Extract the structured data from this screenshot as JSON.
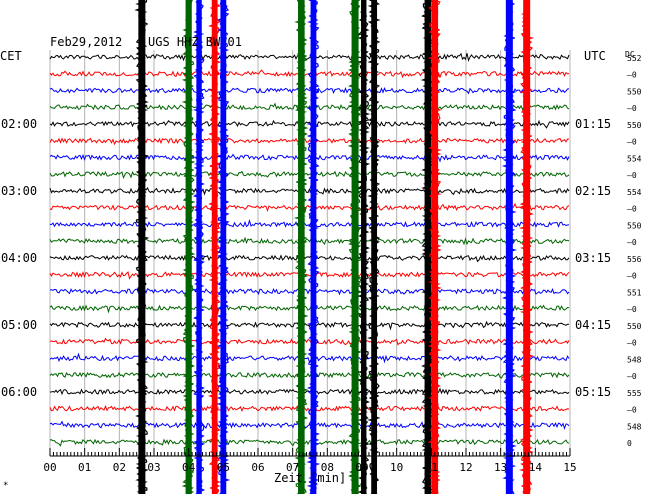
{
  "header": {
    "date": "Feb29,2012",
    "station": "UGS HHZ BW 01"
  },
  "labels": {
    "left_tz": "CET",
    "right_tz": "UTC",
    "dc": "DC",
    "xlabel": "Zeit [min]",
    "corner_mark": "*"
  },
  "colors": {
    "background": "#ffffff",
    "grid": "#b4b4b4",
    "text": "#000000",
    "trace_cycle": [
      "#000000",
      "#ff0000",
      "#0000ff",
      "#006400"
    ]
  },
  "chart_data": {
    "type": "line",
    "title": "Feb29,2012 UGS HHZ BW 01",
    "xlabel": "Zeit [min]",
    "xlim": [
      0,
      15
    ],
    "x_ticks": [
      "00",
      "01",
      "02",
      "03",
      "04",
      "05",
      "06",
      "07",
      "08",
      "09",
      "10",
      "11",
      "12",
      "13",
      "14",
      "15"
    ],
    "trace_count": 24,
    "trace_minutes": 15,
    "time_labels_left": [
      {
        "trace": 4,
        "text": "02:00"
      },
      {
        "trace": 8,
        "text": "03:00"
      },
      {
        "trace": 12,
        "text": "04:00"
      },
      {
        "trace": 16,
        "text": "05:00"
      },
      {
        "trace": 20,
        "text": "06:00"
      }
    ],
    "time_labels_right": [
      {
        "trace": 4,
        "text": "01:15"
      },
      {
        "trace": 8,
        "text": "02:15"
      },
      {
        "trace": 12,
        "text": "03:15"
      },
      {
        "trace": 16,
        "text": "04:15"
      },
      {
        "trace": 20,
        "text": "05:15"
      }
    ],
    "dc_offsets": [
      "552",
      "–0",
      "550",
      "–0",
      "550",
      "–0",
      "554",
      "–0",
      "554",
      "–0",
      "550",
      "–0",
      "556",
      "–0",
      "551",
      "–0",
      "550",
      "–0",
      "548",
      "–0",
      "555",
      "–0",
      "548",
      "0"
    ],
    "events": [
      {
        "minute": 2.65,
        "color": "#000000",
        "strength": 1.0
      },
      {
        "minute": 4.0,
        "color": "#006400",
        "strength": 0.8
      },
      {
        "minute": 4.3,
        "color": "#0000ff",
        "strength": 0.6
      },
      {
        "minute": 4.75,
        "color": "#ff0000",
        "strength": 0.7
      },
      {
        "minute": 5.0,
        "color": "#0000ff",
        "strength": 0.7
      },
      {
        "minute": 7.25,
        "color": "#006400",
        "strength": 0.9
      },
      {
        "minute": 7.6,
        "color": "#0000ff",
        "strength": 0.7
      },
      {
        "minute": 8.8,
        "color": "#006400",
        "strength": 1.0
      },
      {
        "minute": 9.05,
        "color": "#000000",
        "strength": 0.6
      },
      {
        "minute": 9.35,
        "color": "#000000",
        "strength": 0.7
      },
      {
        "minute": 10.9,
        "color": "#000000",
        "strength": 0.9
      },
      {
        "minute": 11.1,
        "color": "#ff0000",
        "strength": 0.9
      },
      {
        "minute": 13.25,
        "color": "#0000ff",
        "strength": 1.0
      },
      {
        "minute": 13.75,
        "color": "#ff0000",
        "strength": 1.0
      }
    ]
  }
}
